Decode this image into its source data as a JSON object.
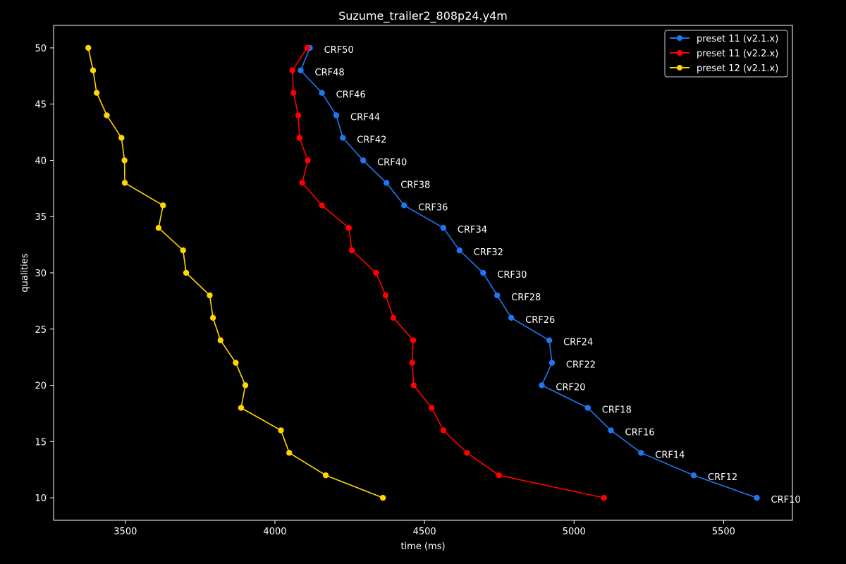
{
  "chart_data": {
    "type": "line",
    "title": "Suzume_trailer2_808p24.y4m",
    "xlabel": "time (ms)",
    "ylabel": "qualities",
    "xlim": [
      3260,
      5730
    ],
    "ylim": [
      8,
      52
    ],
    "xticks": [
      3500,
      4000,
      4500,
      5000,
      5500
    ],
    "yticks": [
      10,
      15,
      20,
      25,
      30,
      35,
      40,
      45,
      50
    ],
    "grid": false,
    "legend_position": "top-right",
    "point_labels": [
      "CRF50",
      "CRF48",
      "CRF46",
      "CRF44",
      "CRF42",
      "CRF40",
      "CRF38",
      "CRF36",
      "CRF34",
      "CRF32",
      "CRF30",
      "CRF28",
      "CRF26",
      "CRF24",
      "CRF22",
      "CRF20",
      "CRF18",
      "CRF16",
      "CRF14",
      "CRF12",
      "CRF10"
    ],
    "labeled_series_index": 0,
    "series": [
      {
        "name": "preset 11 (v2.1.x)",
        "color": "#1f77f0",
        "points": [
          [
            4117,
            50
          ],
          [
            4086,
            48
          ],
          [
            4157,
            46
          ],
          [
            4205,
            44
          ],
          [
            4227,
            42
          ],
          [
            4295,
            40
          ],
          [
            4373,
            38
          ],
          [
            4432,
            36
          ],
          [
            4563,
            34
          ],
          [
            4617,
            32
          ],
          [
            4696,
            30
          ],
          [
            4743,
            28
          ],
          [
            4790,
            26
          ],
          [
            4917,
            24
          ],
          [
            4926,
            22
          ],
          [
            4892,
            20
          ],
          [
            5046,
            18
          ],
          [
            5123,
            16
          ],
          [
            5224,
            14
          ],
          [
            5400,
            12
          ],
          [
            5611,
            10
          ]
        ]
      },
      {
        "name": "preset 11 (v2.2.x)",
        "color": "#ff0000",
        "points": [
          [
            4108,
            50
          ],
          [
            4058,
            48
          ],
          [
            4062,
            46
          ],
          [
            4078,
            44
          ],
          [
            4082,
            42
          ],
          [
            4110,
            40
          ],
          [
            4091,
            38
          ],
          [
            4157,
            36
          ],
          [
            4247,
            34
          ],
          [
            4257,
            32
          ],
          [
            4338,
            30
          ],
          [
            4370,
            28
          ],
          [
            4396,
            26
          ],
          [
            4462,
            24
          ],
          [
            4459,
            22
          ],
          [
            4464,
            20
          ],
          [
            4524,
            18
          ],
          [
            4563,
            16
          ],
          [
            4642,
            14
          ],
          [
            4749,
            12
          ],
          [
            5100,
            10
          ]
        ]
      },
      {
        "name": "preset 12 (v2.1.x)",
        "color": "#ffd700",
        "points": [
          [
            3376,
            50
          ],
          [
            3392,
            48
          ],
          [
            3404,
            46
          ],
          [
            3438,
            44
          ],
          [
            3487,
            42
          ],
          [
            3497,
            40
          ],
          [
            3498,
            38
          ],
          [
            3626,
            36
          ],
          [
            3611,
            34
          ],
          [
            3693,
            32
          ],
          [
            3703,
            30
          ],
          [
            3782,
            28
          ],
          [
            3793,
            26
          ],
          [
            3818,
            24
          ],
          [
            3869,
            22
          ],
          [
            3901,
            20
          ],
          [
            3887,
            18
          ],
          [
            4020,
            16
          ],
          [
            4048,
            14
          ],
          [
            4170,
            12
          ],
          [
            4361,
            10
          ]
        ]
      }
    ]
  }
}
